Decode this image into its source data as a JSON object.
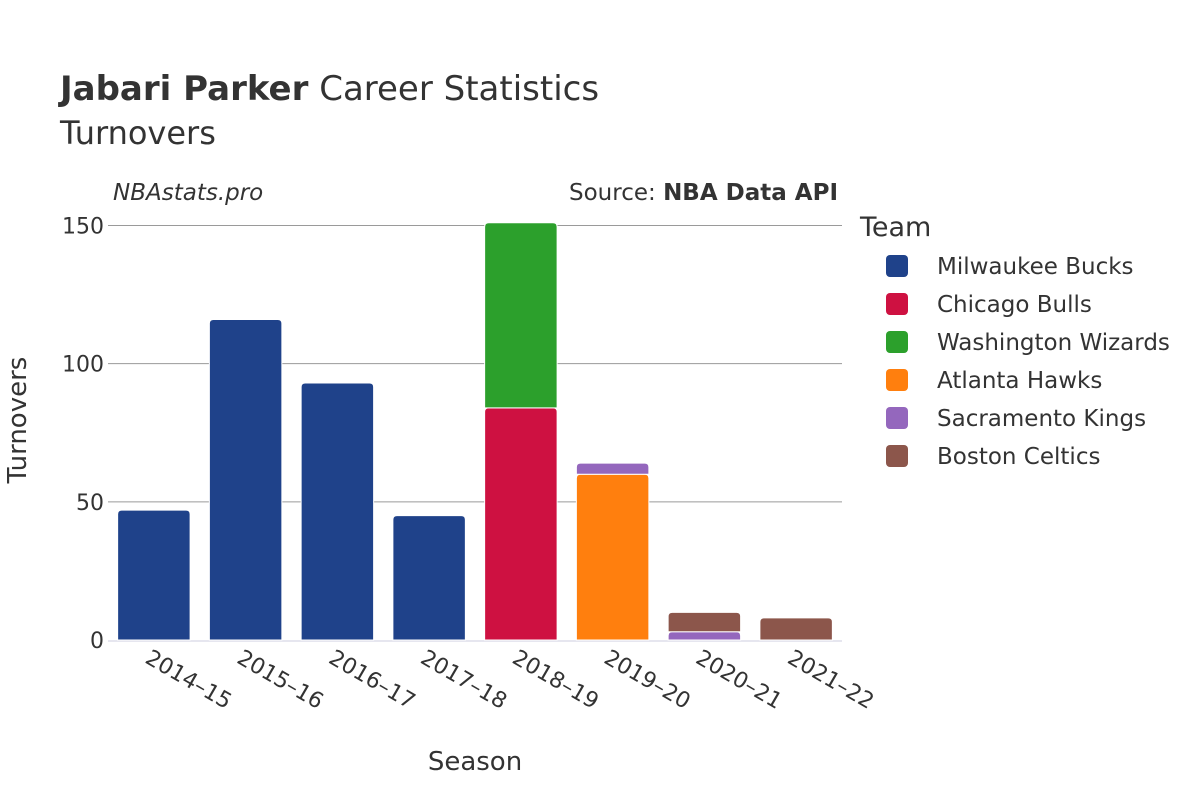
{
  "header": {
    "title_bold": "Jabari Parker",
    "title_rest": " Career Statistics",
    "subtitle": "Turnovers",
    "brand": "NBAstats.pro",
    "source_prefix": "Source: ",
    "source_name": "NBA Data API"
  },
  "chart_data": {
    "type": "bar",
    "stacked": true,
    "xlabel": "Season",
    "ylabel": "Turnovers",
    "ylim": [
      0,
      152
    ],
    "yticks": [
      0,
      50,
      100,
      150
    ],
    "grid": true,
    "legend_title": "Team",
    "legend_position": "right",
    "categories": [
      "2014–15",
      "2015–16",
      "2016–17",
      "2017–18",
      "2018–19",
      "2019–20",
      "2020–21",
      "2021–22"
    ],
    "series": [
      {
        "name": "Milwaukee Bucks",
        "color": "#1f428a",
        "values": [
          47,
          116,
          93,
          45,
          0,
          0,
          0,
          0
        ]
      },
      {
        "name": "Chicago Bulls",
        "color": "#ce1141",
        "values": [
          0,
          0,
          0,
          0,
          84,
          0,
          0,
          0
        ]
      },
      {
        "name": "Washington Wizards",
        "color": "#2ca02c",
        "values": [
          0,
          0,
          0,
          0,
          67,
          0,
          0,
          0
        ]
      },
      {
        "name": "Atlanta Hawks",
        "color": "#ff7f0e",
        "values": [
          0,
          0,
          0,
          0,
          0,
          60,
          0,
          0
        ]
      },
      {
        "name": "Sacramento Kings",
        "color": "#9467bd",
        "values": [
          0,
          0,
          0,
          0,
          0,
          4,
          3,
          0
        ]
      },
      {
        "name": "Boston Celtics",
        "color": "#8c564b",
        "values": [
          0,
          0,
          0,
          0,
          0,
          0,
          7,
          8
        ]
      }
    ]
  }
}
